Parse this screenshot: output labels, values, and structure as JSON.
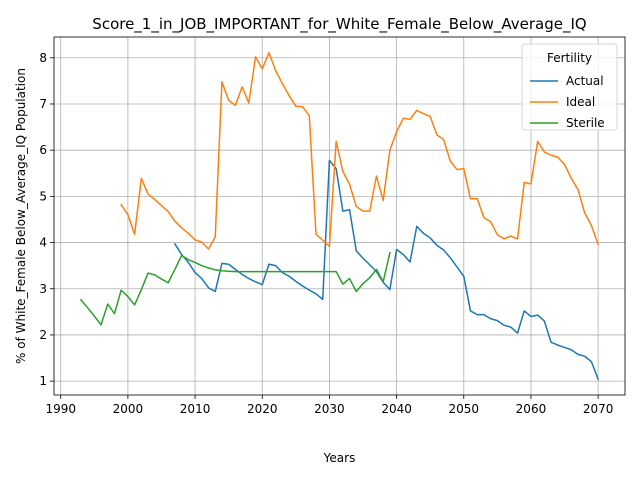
{
  "chart_data": {
    "type": "line",
    "title": "Score_1_in_JOB_IMPORTANT_for_White_Female_Below_Average_IQ",
    "xlabel": "Years",
    "ylabel": "% of White_Female Below_Average_IQ Population",
    "xlim": [
      1989,
      2074
    ],
    "ylim": [
      0.7,
      8.45
    ],
    "grid": true,
    "xticks": [
      1990,
      2000,
      2010,
      2020,
      2030,
      2040,
      2050,
      2060,
      2070
    ],
    "yticks": [
      1,
      2,
      3,
      4,
      5,
      6,
      7,
      8
    ],
    "legend": {
      "title": "Fertility",
      "placement": "top-right"
    },
    "series": [
      {
        "name": "Actual",
        "color": "#1f77b4",
        "x": [
          2007,
          2008,
          2009,
          2010,
          2011,
          2012,
          2013,
          2014,
          2015,
          2016,
          2017,
          2018,
          2019,
          2020,
          2021,
          2022,
          2023,
          2024,
          2025,
          2026,
          2027,
          2028,
          2029,
          2030,
          2031,
          2032,
          2033,
          2034,
          2035,
          2036,
          2037,
          2038,
          2039,
          2040,
          2041,
          2042,
          2043,
          2044,
          2045,
          2046,
          2047,
          2048,
          2049,
          2050,
          2051,
          2052,
          2053,
          2054,
          2055,
          2056,
          2057,
          2058,
          2059,
          2060,
          2061,
          2062,
          2063,
          2064,
          2065,
          2066,
          2067,
          2068,
          2069,
          2070
        ],
        "y": [
          3.97,
          3.74,
          3.57,
          3.35,
          3.22,
          3.02,
          2.94,
          3.55,
          3.53,
          3.42,
          3.31,
          3.22,
          3.15,
          3.09,
          3.53,
          3.5,
          3.35,
          3.27,
          3.16,
          3.06,
          2.97,
          2.89,
          2.77,
          5.78,
          5.6,
          4.68,
          4.71,
          3.82,
          3.66,
          3.52,
          3.37,
          3.14,
          2.98,
          3.85,
          3.74,
          3.58,
          4.35,
          4.2,
          4.1,
          3.94,
          3.84,
          3.67,
          3.47,
          3.27,
          2.52,
          2.44,
          2.44,
          2.35,
          2.31,
          2.21,
          2.17,
          2.04,
          2.52,
          2.4,
          2.43,
          2.3,
          1.84,
          1.78,
          1.73,
          1.68,
          1.58,
          1.54,
          1.42,
          1.04
        ]
      },
      {
        "name": "Ideal",
        "color": "#ff7f0e",
        "x": [
          1999,
          2000,
          2001,
          2002,
          2003,
          2004,
          2005,
          2006,
          2007,
          2008,
          2009,
          2010,
          2011,
          2012,
          2013,
          2014,
          2015,
          2016,
          2017,
          2018,
          2019,
          2020,
          2021,
          2022,
          2023,
          2024,
          2025,
          2026,
          2027,
          2028,
          2029,
          2030,
          2031,
          2032,
          2033,
          2034,
          2035,
          2036,
          2037,
          2038,
          2039,
          2040,
          2041,
          2042,
          2043,
          2044,
          2045,
          2046,
          2047,
          2048,
          2049,
          2050,
          2051,
          2052,
          2053,
          2054,
          2055,
          2056,
          2057,
          2058,
          2059,
          2060,
          2061,
          2062,
          2063,
          2064,
          2065,
          2066,
          2067,
          2068,
          2069,
          2070
        ],
        "y": [
          4.82,
          4.6,
          4.18,
          5.39,
          5.05,
          4.93,
          4.8,
          4.67,
          4.46,
          4.32,
          4.2,
          4.06,
          4.01,
          3.86,
          4.12,
          7.48,
          7.08,
          6.97,
          7.37,
          7.02,
          8.02,
          7.76,
          8.11,
          7.72,
          7.44,
          7.18,
          6.95,
          6.94,
          6.75,
          4.18,
          4.05,
          3.92,
          6.19,
          5.54,
          5.26,
          4.78,
          4.68,
          4.68,
          5.44,
          4.91,
          6.0,
          6.4,
          6.69,
          6.67,
          6.86,
          6.79,
          6.73,
          6.33,
          6.23,
          5.76,
          5.58,
          5.6,
          4.95,
          4.95,
          4.54,
          4.45,
          4.17,
          4.08,
          4.14,
          4.08,
          5.3,
          5.27,
          6.19,
          5.96,
          5.89,
          5.85,
          5.69,
          5.39,
          5.15,
          4.64,
          4.37,
          3.96
        ]
      },
      {
        "name": "Sterile",
        "color": "#2ca02c",
        "x": [
          1993,
          1994,
          1995,
          1996,
          1997,
          1998,
          1999,
          2000,
          2001,
          2002,
          2003,
          2004,
          2005,
          2006,
          2007,
          2008,
          2009,
          2010,
          2011,
          2012,
          2013,
          2014,
          2015,
          2016,
          2017,
          2018,
          2019,
          2020,
          2021,
          2022,
          2023,
          2024,
          2025,
          2026,
          2027,
          2028,
          2029,
          2030,
          2031,
          2032,
          2033,
          2034,
          2035,
          2036,
          2037,
          2038,
          2039
        ],
        "y": [
          2.76,
          2.59,
          2.41,
          2.22,
          2.67,
          2.46,
          2.97,
          2.83,
          2.65,
          2.98,
          3.34,
          3.3,
          3.21,
          3.13,
          3.42,
          3.72,
          3.63,
          3.57,
          3.5,
          3.45,
          3.41,
          3.39,
          3.38,
          3.37,
          3.37,
          3.37,
          3.37,
          3.37,
          3.37,
          3.37,
          3.37,
          3.37,
          3.37,
          3.37,
          3.37,
          3.37,
          3.37,
          3.37,
          3.37,
          3.1,
          3.22,
          2.94,
          3.11,
          3.24,
          3.42,
          3.15,
          3.78
        ]
      }
    ]
  }
}
